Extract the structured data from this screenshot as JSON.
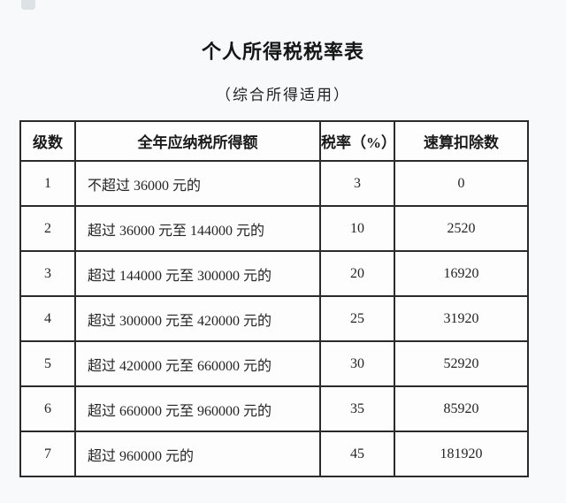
{
  "page": {
    "title": "个人所得税税率表",
    "subtitle": "（综合所得适用）"
  },
  "table": {
    "columns": [
      "级数",
      "全年应纳税所得额",
      "税率（%）",
      "速算扣除数"
    ],
    "rows": [
      {
        "level": "1",
        "income": "不超过 36000 元的",
        "rate": "3",
        "deduction": "0"
      },
      {
        "level": "2",
        "income": "超过 36000 元至 144000 元的",
        "rate": "10",
        "deduction": "2520"
      },
      {
        "level": "3",
        "income": "超过 144000 元至 300000 元的",
        "rate": "20",
        "deduction": "16920"
      },
      {
        "level": "4",
        "income": "超过 300000 元至 420000 元的",
        "rate": "25",
        "deduction": "31920"
      },
      {
        "level": "5",
        "income": "超过 420000 元至 660000 元的",
        "rate": "30",
        "deduction": "52920"
      },
      {
        "level": "6",
        "income": "超过 660000 元至 960000 元的",
        "rate": "35",
        "deduction": "85920"
      },
      {
        "level": "7",
        "income": "超过 960000 元的",
        "rate": "45",
        "deduction": "181920"
      }
    ]
  },
  "colors": {
    "page_background": "#f7f9fa",
    "cell_background": "#fdfdfd",
    "border": "#2b2b2b",
    "text": "#1f1f1f"
  }
}
